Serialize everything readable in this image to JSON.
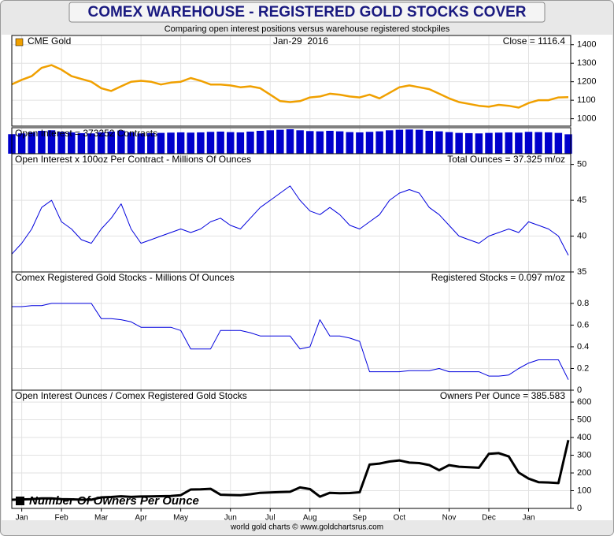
{
  "title": "COMEX WAREHOUSE - REGISTERED GOLD STOCKS COVER",
  "subtitle": "Comparing open interest positions versus warehouse registered stockpiles",
  "footer": "world gold charts © www.goldchartsrus.com",
  "chart_data": [
    {
      "type": "line",
      "date_label": "Jan-29  2016",
      "annotation": "Close = 1116.4",
      "series": [
        {
          "name": "CME Gold",
          "color": "#f0a000",
          "values": [
            1186,
            1210,
            1230,
            1275,
            1290,
            1265,
            1230,
            1215,
            1200,
            1165,
            1150,
            1175,
            1200,
            1205,
            1200,
            1185,
            1195,
            1200,
            1220,
            1205,
            1185,
            1185,
            1180,
            1170,
            1175,
            1165,
            1130,
            1095,
            1090,
            1095,
            1115,
            1120,
            1135,
            1130,
            1120,
            1115,
            1130,
            1110,
            1140,
            1170,
            1180,
            1170,
            1160,
            1135,
            1110,
            1090,
            1080,
            1070,
            1065,
            1075,
            1070,
            1060,
            1085,
            1100,
            1100,
            1115,
            1116.4
          ]
        }
      ],
      "ylim": [
        960,
        1450
      ],
      "yticks": [
        1000,
        1100,
        1200,
        1300,
        1400
      ],
      "grid": true
    },
    {
      "type": "bar",
      "title": "Open Interest = 373252 Contracts",
      "color": "#0000cc",
      "values": [
        375000,
        390000,
        410000,
        440000,
        450000,
        420000,
        410000,
        395000,
        390000,
        410000,
        425000,
        445000,
        410000,
        390000,
        395000,
        400000,
        405000,
        410000,
        405000,
        410000,
        420000,
        425000,
        415000,
        410000,
        425000,
        440000,
        450000,
        460000,
        470000,
        450000,
        435000,
        430000,
        440000,
        430000,
        415000,
        410000,
        420000,
        430000,
        450000,
        460000,
        465000,
        460000,
        440000,
        430000,
        415000,
        400000,
        395000,
        390000,
        400000,
        405000,
        410000,
        405000,
        420000,
        415000,
        410000,
        400000,
        373252
      ],
      "ylim": [
        0,
        500000
      ],
      "grid": true
    },
    {
      "type": "line",
      "title": "Open Interest x 100oz Per Contract - Millions Of Ounces",
      "annotation": "Total Ounces = 37.325 m/oz",
      "color": "#0000dd",
      "values": [
        37.5,
        39,
        41,
        44,
        45,
        42,
        41,
        39.5,
        39,
        41,
        42.5,
        44.5,
        41,
        39,
        39.5,
        40,
        40.5,
        41,
        40.5,
        41,
        42,
        42.5,
        41.5,
        41,
        42.5,
        44,
        45,
        46,
        47,
        45,
        43.5,
        43,
        44,
        43,
        41.5,
        41,
        42,
        43,
        45,
        46,
        46.5,
        46,
        44,
        43,
        41.5,
        40,
        39.5,
        39,
        40,
        40.5,
        41,
        40.5,
        42,
        41.5,
        41,
        40,
        37.325
      ],
      "ylim": [
        35,
        51.5
      ],
      "yticks": [
        35,
        40,
        45,
        50
      ],
      "grid": true
    },
    {
      "type": "line",
      "title": "Comex Registered Gold Stocks - Millions Of Ounces",
      "annotation": "Registered Stocks = 0.097 m/oz",
      "color": "#0000dd",
      "values": [
        0.77,
        0.77,
        0.78,
        0.78,
        0.8,
        0.8,
        0.8,
        0.8,
        0.8,
        0.66,
        0.66,
        0.65,
        0.63,
        0.58,
        0.58,
        0.58,
        0.58,
        0.55,
        0.38,
        0.38,
        0.38,
        0.55,
        0.55,
        0.55,
        0.53,
        0.5,
        0.5,
        0.5,
        0.5,
        0.38,
        0.4,
        0.65,
        0.5,
        0.5,
        0.48,
        0.45,
        0.17,
        0.17,
        0.17,
        0.17,
        0.18,
        0.18,
        0.18,
        0.2,
        0.17,
        0.17,
        0.17,
        0.17,
        0.13,
        0.13,
        0.14,
        0.2,
        0.25,
        0.28,
        0.28,
        0.28,
        0.097
      ],
      "ylim": [
        0,
        1.09
      ],
      "yticks": [
        0,
        0.2,
        0.4,
        0.6,
        0.8
      ],
      "grid": true
    },
    {
      "type": "line",
      "title": "Open Interest Ounces / Comex Registered Gold Stocks",
      "annotation": "Owners Per Ounce = 385.583",
      "categories": [
        null,
        "Jan",
        null,
        null,
        null,
        "Feb",
        null,
        null,
        null,
        "Mar",
        null,
        null,
        null,
        "Apr",
        null,
        null,
        null,
        "May",
        null,
        null,
        null,
        null,
        "Jun",
        null,
        null,
        null,
        "Jul",
        null,
        null,
        null,
        "Aug",
        null,
        null,
        null,
        null,
        "Sep",
        null,
        null,
        null,
        "Oct",
        null,
        null,
        null,
        null,
        "Nov",
        null,
        null,
        null,
        "Dec",
        null,
        null,
        null,
        "Jan",
        null,
        null,
        null,
        null
      ],
      "series": [
        {
          "name": "Number Of Owners Per Ounce",
          "color": "#000000",
          "values": [
            48.7,
            50.6,
            52.6,
            56.4,
            56.3,
            52.5,
            51.3,
            49.4,
            48.8,
            62.1,
            64.4,
            68.5,
            65.1,
            67.2,
            68.1,
            69,
            69.8,
            74.5,
            106.6,
            107.9,
            110.5,
            77.3,
            75.5,
            74.5,
            80.2,
            88,
            90,
            92,
            94,
            118.4,
            108.8,
            66.2,
            88,
            86,
            86.5,
            91.1,
            247.1,
            252.9,
            264.7,
            270.6,
            258.3,
            255.6,
            244.4,
            215,
            244.1,
            235.3,
            232.4,
            229.4,
            307.7,
            311.5,
            292.9,
            202.5,
            168,
            148.2,
            146.4,
            142.9,
            385.583
          ]
        }
      ],
      "ylim": [
        0,
        667
      ],
      "yticks": [
        0,
        100,
        200,
        300,
        400,
        500,
        600
      ],
      "grid": true
    }
  ]
}
